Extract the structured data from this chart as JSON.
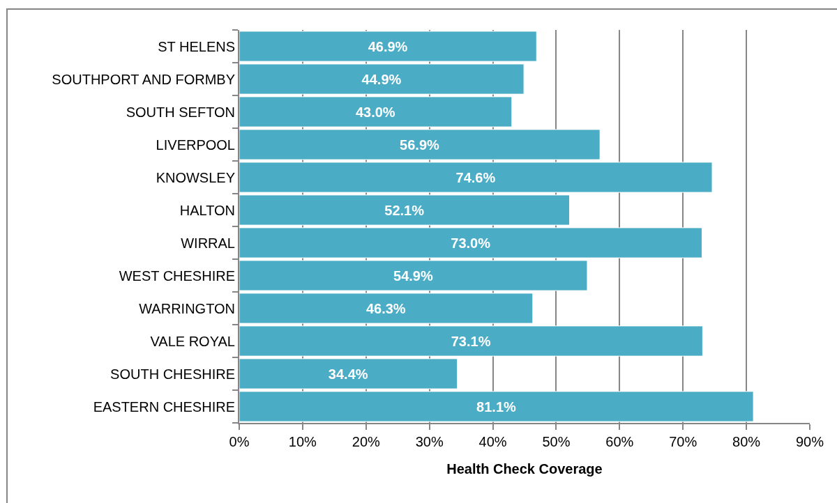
{
  "chart_data": {
    "type": "bar",
    "orientation": "horizontal",
    "xlabel": "Health Check Coverage",
    "categories": [
      "ST HELENS",
      "SOUTHPORT AND FORMBY",
      "SOUTH SEFTON",
      "LIVERPOOL",
      "KNOWSLEY",
      "HALTON",
      "WIRRAL",
      "WEST CHESHIRE",
      "WARRINGTON",
      "VALE ROYAL",
      "SOUTH CHESHIRE",
      "EASTERN CHESHIRE"
    ],
    "values": [
      46.9,
      44.9,
      43.0,
      56.9,
      74.6,
      52.1,
      73.0,
      54.9,
      46.3,
      73.1,
      34.4,
      81.1
    ],
    "value_labels": [
      "46.9%",
      "44.9%",
      "43.0%",
      "56.9%",
      "74.6%",
      "52.1%",
      "73.0%",
      "54.9%",
      "46.3%",
      "73.1%",
      "34.4%",
      "81.1%"
    ],
    "color": "#4bacc6",
    "xlim": [
      0,
      90
    ],
    "xticks": [
      {
        "value": 0,
        "label": "0%"
      },
      {
        "value": 10,
        "label": "10%"
      },
      {
        "value": 20,
        "label": "20%"
      },
      {
        "value": 30,
        "label": "30%"
      },
      {
        "value": 40,
        "label": "40%"
      },
      {
        "value": 50,
        "label": "50%"
      },
      {
        "value": 60,
        "label": "60%"
      },
      {
        "value": 70,
        "label": "70%"
      },
      {
        "value": 80,
        "label": "80%"
      },
      {
        "value": 90,
        "label": "90%"
      }
    ],
    "grid": "x"
  }
}
